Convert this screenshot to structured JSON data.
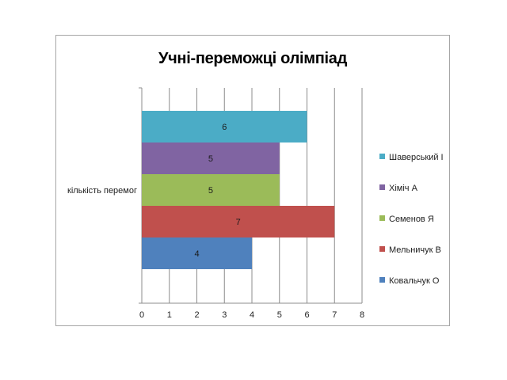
{
  "chart_data": {
    "type": "bar",
    "orientation": "horizontal",
    "title": "Учні-переможці олімпіад",
    "categories": [
      "кількість перемог"
    ],
    "x_ticks": [
      "0",
      "1",
      "2",
      "3",
      "4",
      "5",
      "6",
      "7",
      "8"
    ],
    "xlim": [
      0,
      8
    ],
    "grid": true,
    "legend_position": "right",
    "series": [
      {
        "name": "Шаверський І",
        "values": [
          6
        ],
        "color": "#4bacc6"
      },
      {
        "name": "Хіміч А",
        "values": [
          5
        ],
        "color": "#8064a2"
      },
      {
        "name": "Семенов Я",
        "values": [
          5
        ],
        "color": "#9bbb59"
      },
      {
        "name": "Мельничук В",
        "values": [
          7
        ],
        "color": "#c0504d"
      },
      {
        "name": "Ковальчук О",
        "values": [
          4
        ],
        "color": "#4f81bd"
      }
    ]
  }
}
